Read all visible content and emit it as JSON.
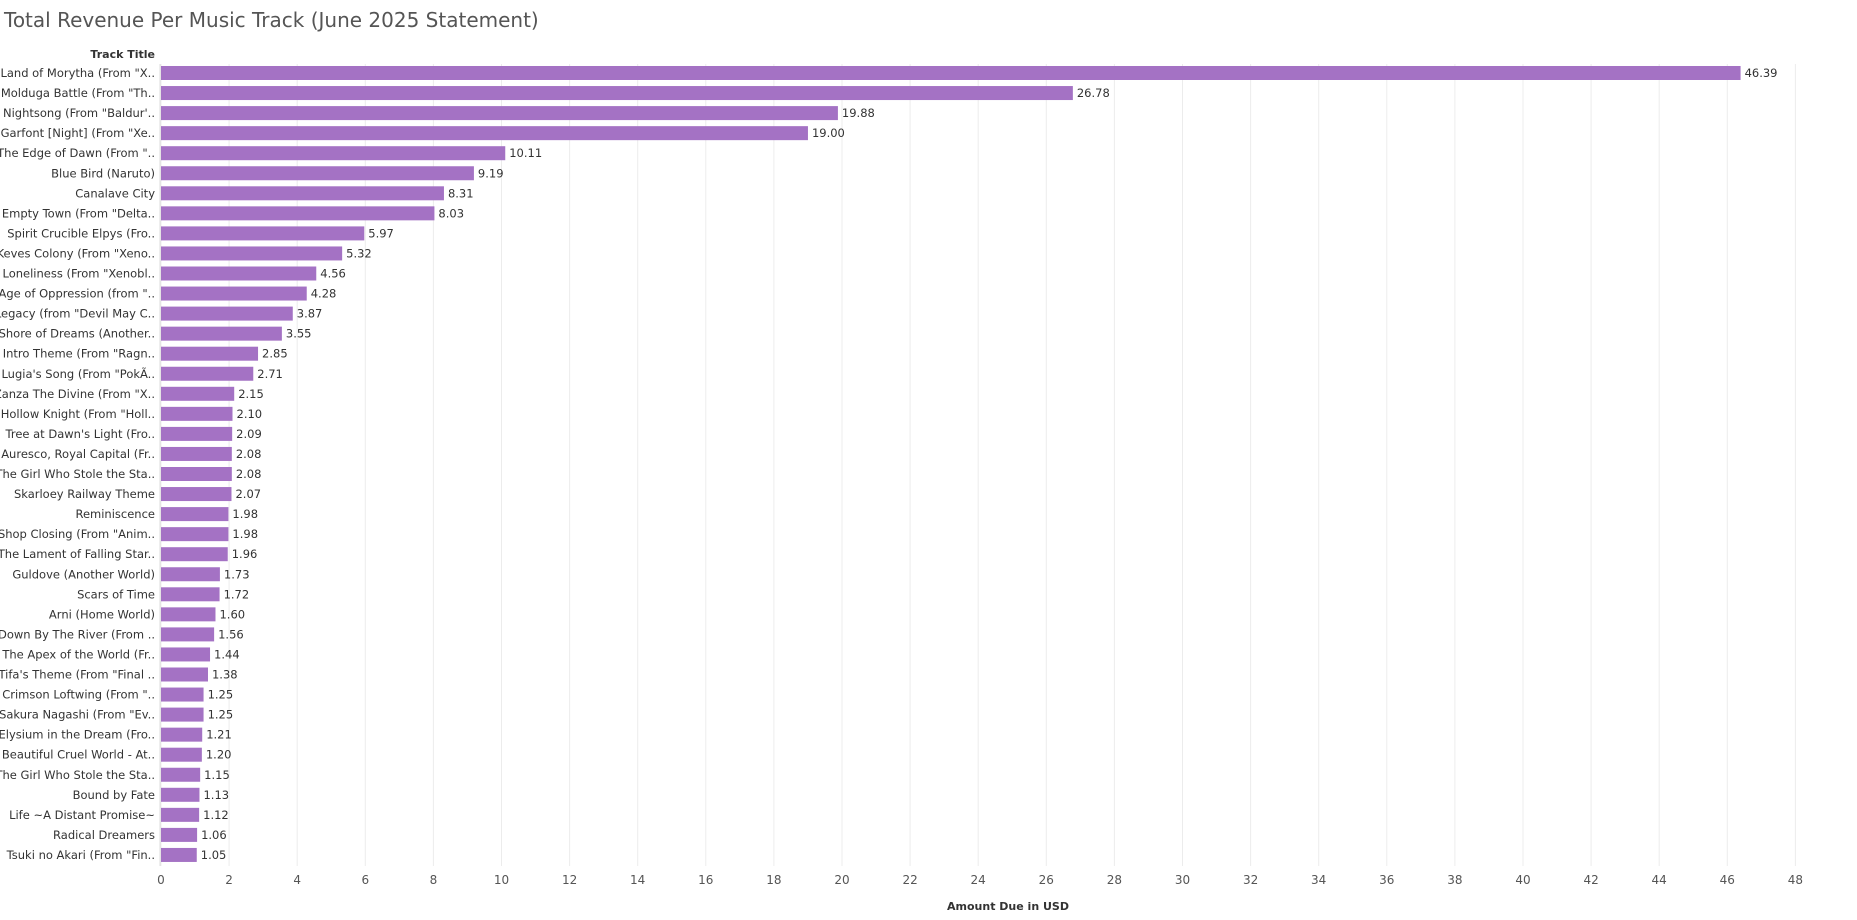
{
  "chart_data": {
    "type": "bar",
    "orientation": "horizontal",
    "title": "Total Revenue Per Music Track (June 2025 Statement)",
    "ylabel": "Track Title",
    "xlabel": "Amount Due in USD",
    "xlim": [
      0,
      49
    ],
    "xticks": [
      "0",
      "2",
      "4",
      "6",
      "8",
      "10",
      "12",
      "14",
      "16",
      "18",
      "20",
      "22",
      "24",
      "26",
      "28",
      "30",
      "32",
      "34",
      "36",
      "38",
      "40",
      "42",
      "44",
      "46",
      "48"
    ],
    "grid": true,
    "color": "#a472c4",
    "categories": [
      "Land of Morytha (From \"X..",
      "Molduga Battle (From \"Th..",
      "Nightsong (From \"Baldur'..",
      "Garfont [Night] (From \"Xe..",
      "The Edge of Dawn (From \"..",
      "Blue Bird (Naruto)",
      "Canalave City",
      "Empty Town (From \"Delta..",
      "Spirit Crucible Elpys (Fro..",
      "Keves Colony (From \"Xeno..",
      "Loneliness (From \"Xenobl..",
      "Age of Oppression (from \"..",
      "Legacy (from \"Devil May C..",
      "Shore of Dreams (Another..",
      "Intro Theme (From \"Ragn..",
      "Lugia's Song (From \"PokÃ..",
      "Zanza The Divine (From \"X..",
      "Hollow Knight (From \"Holl..",
      "Tree at Dawn's Light (Fro..",
      "Auresco, Royal Capital (Fr..",
      "The Girl Who Stole the Sta..",
      "Skarloey Railway Theme",
      "Reminiscence",
      "Shop Closing (From \"Anim..",
      "The Lament of Falling Star..",
      "Guldove (Another World)",
      "Scars of Time",
      "Arni (Home World)",
      "Down By The River (From ..",
      "The Apex of the World (Fr..",
      "Tifa's Theme (From \"Final ..",
      "Crimson Loftwing (From \"..",
      "Sakura Nagashi (From \"Ev..",
      "Elysium in the Dream (Fro..",
      "Beautiful Cruel World - At..",
      "The Girl Who Stole the Sta..",
      "Bound by Fate",
      "Life ~A Distant Promise~",
      "Radical Dreamers",
      "Tsuki no Akari (From \"Fin.."
    ],
    "values": [
      46.39,
      26.78,
      19.88,
      19.0,
      10.11,
      9.19,
      8.31,
      8.03,
      5.97,
      5.32,
      4.56,
      4.28,
      3.87,
      3.55,
      2.85,
      2.71,
      2.15,
      2.1,
      2.09,
      2.08,
      2.08,
      2.07,
      1.98,
      1.98,
      1.96,
      1.73,
      1.72,
      1.6,
      1.56,
      1.44,
      1.38,
      1.25,
      1.25,
      1.21,
      1.2,
      1.15,
      1.13,
      1.12,
      1.06,
      1.05
    ],
    "value_labels": [
      "46.39",
      "26.78",
      "19.88",
      "19.00",
      "10.11",
      "9.19",
      "8.31",
      "8.03",
      "5.97",
      "5.32",
      "4.56",
      "4.28",
      "3.87",
      "3.55",
      "2.85",
      "2.71",
      "2.15",
      "2.10",
      "2.09",
      "2.08",
      "2.08",
      "2.07",
      "1.98",
      "1.98",
      "1.96",
      "1.73",
      "1.72",
      "1.60",
      "1.56",
      "1.44",
      "1.38",
      "1.25",
      "1.25",
      "1.21",
      "1.20",
      "1.15",
      "1.13",
      "1.12",
      "1.06",
      "1.05"
    ]
  }
}
